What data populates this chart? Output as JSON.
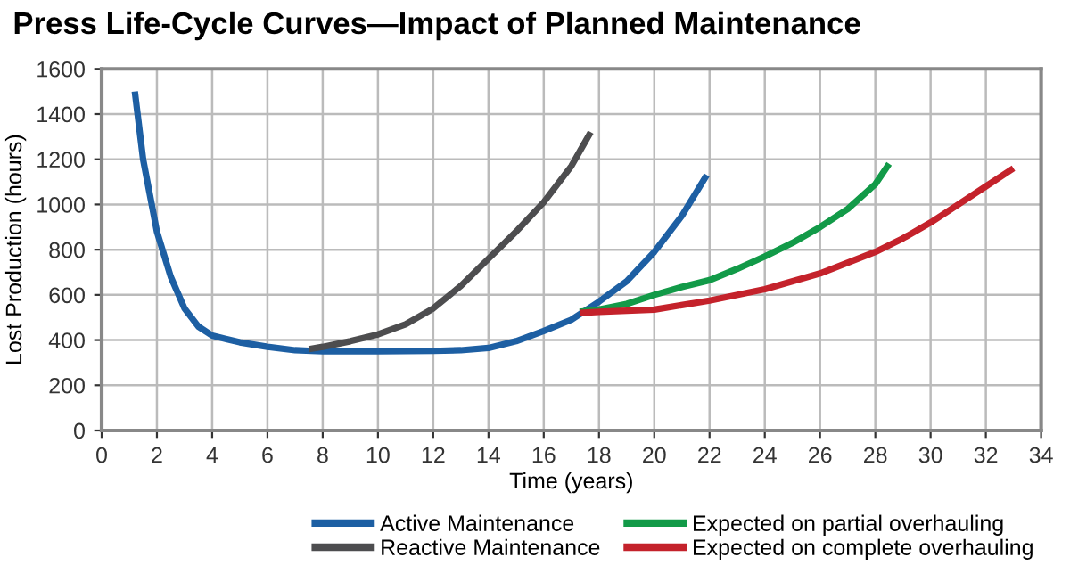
{
  "chart_data": {
    "type": "line",
    "title": "Press Life-Cycle Curves—Impact of Planned Maintenance",
    "xlabel": "Time (years)",
    "ylabel": "Lost Production (hours)",
    "xlim": [
      0,
      34
    ],
    "xticks": [
      0,
      2,
      4,
      6,
      8,
      10,
      12,
      14,
      16,
      18,
      20,
      22,
      24,
      26,
      28,
      30,
      32,
      34
    ],
    "ylim": [
      0,
      1600
    ],
    "yticks": [
      0,
      200,
      400,
      600,
      800,
      1000,
      1200,
      1400,
      1600
    ],
    "grid": true,
    "legend": "bottom",
    "marker": "none",
    "line_style": "solid",
    "series": [
      {
        "name": "Active Maintenance",
        "color": "#1d5fa3",
        "x": [
          1.2,
          1.5,
          2,
          2.5,
          3,
          3.5,
          4,
          5,
          6,
          7,
          8,
          10,
          12,
          13,
          14,
          15,
          16,
          17,
          18,
          19,
          20,
          21,
          21.9
        ],
        "values": [
          1500,
          1200,
          880,
          680,
          540,
          460,
          420,
          390,
          370,
          355,
          350,
          350,
          352,
          355,
          365,
          395,
          440,
          490,
          570,
          660,
          790,
          950,
          1130
        ]
      },
      {
        "name": "Reactive Maintenance",
        "color": "#4d4d4f",
        "x": [
          7.5,
          8,
          9,
          10,
          11,
          12,
          13,
          14,
          15,
          16,
          17,
          17.7
        ],
        "values": [
          360,
          370,
          395,
          425,
          470,
          540,
          640,
          760,
          880,
          1010,
          1170,
          1320
        ]
      },
      {
        "name": "Expected on partial overhauling",
        "color": "#129a48",
        "x": [
          17.3,
          18,
          19,
          20,
          21,
          22,
          23,
          24,
          25,
          26,
          27,
          28,
          28.5
        ],
        "values": [
          525,
          535,
          560,
          600,
          635,
          665,
          715,
          770,
          830,
          900,
          980,
          1090,
          1180
        ]
      },
      {
        "name": "Expected on complete overhauling",
        "color": "#c4222b",
        "x": [
          17.3,
          18,
          20,
          22,
          24,
          26,
          28,
          29,
          30,
          31,
          32,
          33
        ],
        "values": [
          520,
          525,
          535,
          575,
          625,
          695,
          790,
          850,
          920,
          1000,
          1080,
          1160
        ]
      }
    ]
  }
}
